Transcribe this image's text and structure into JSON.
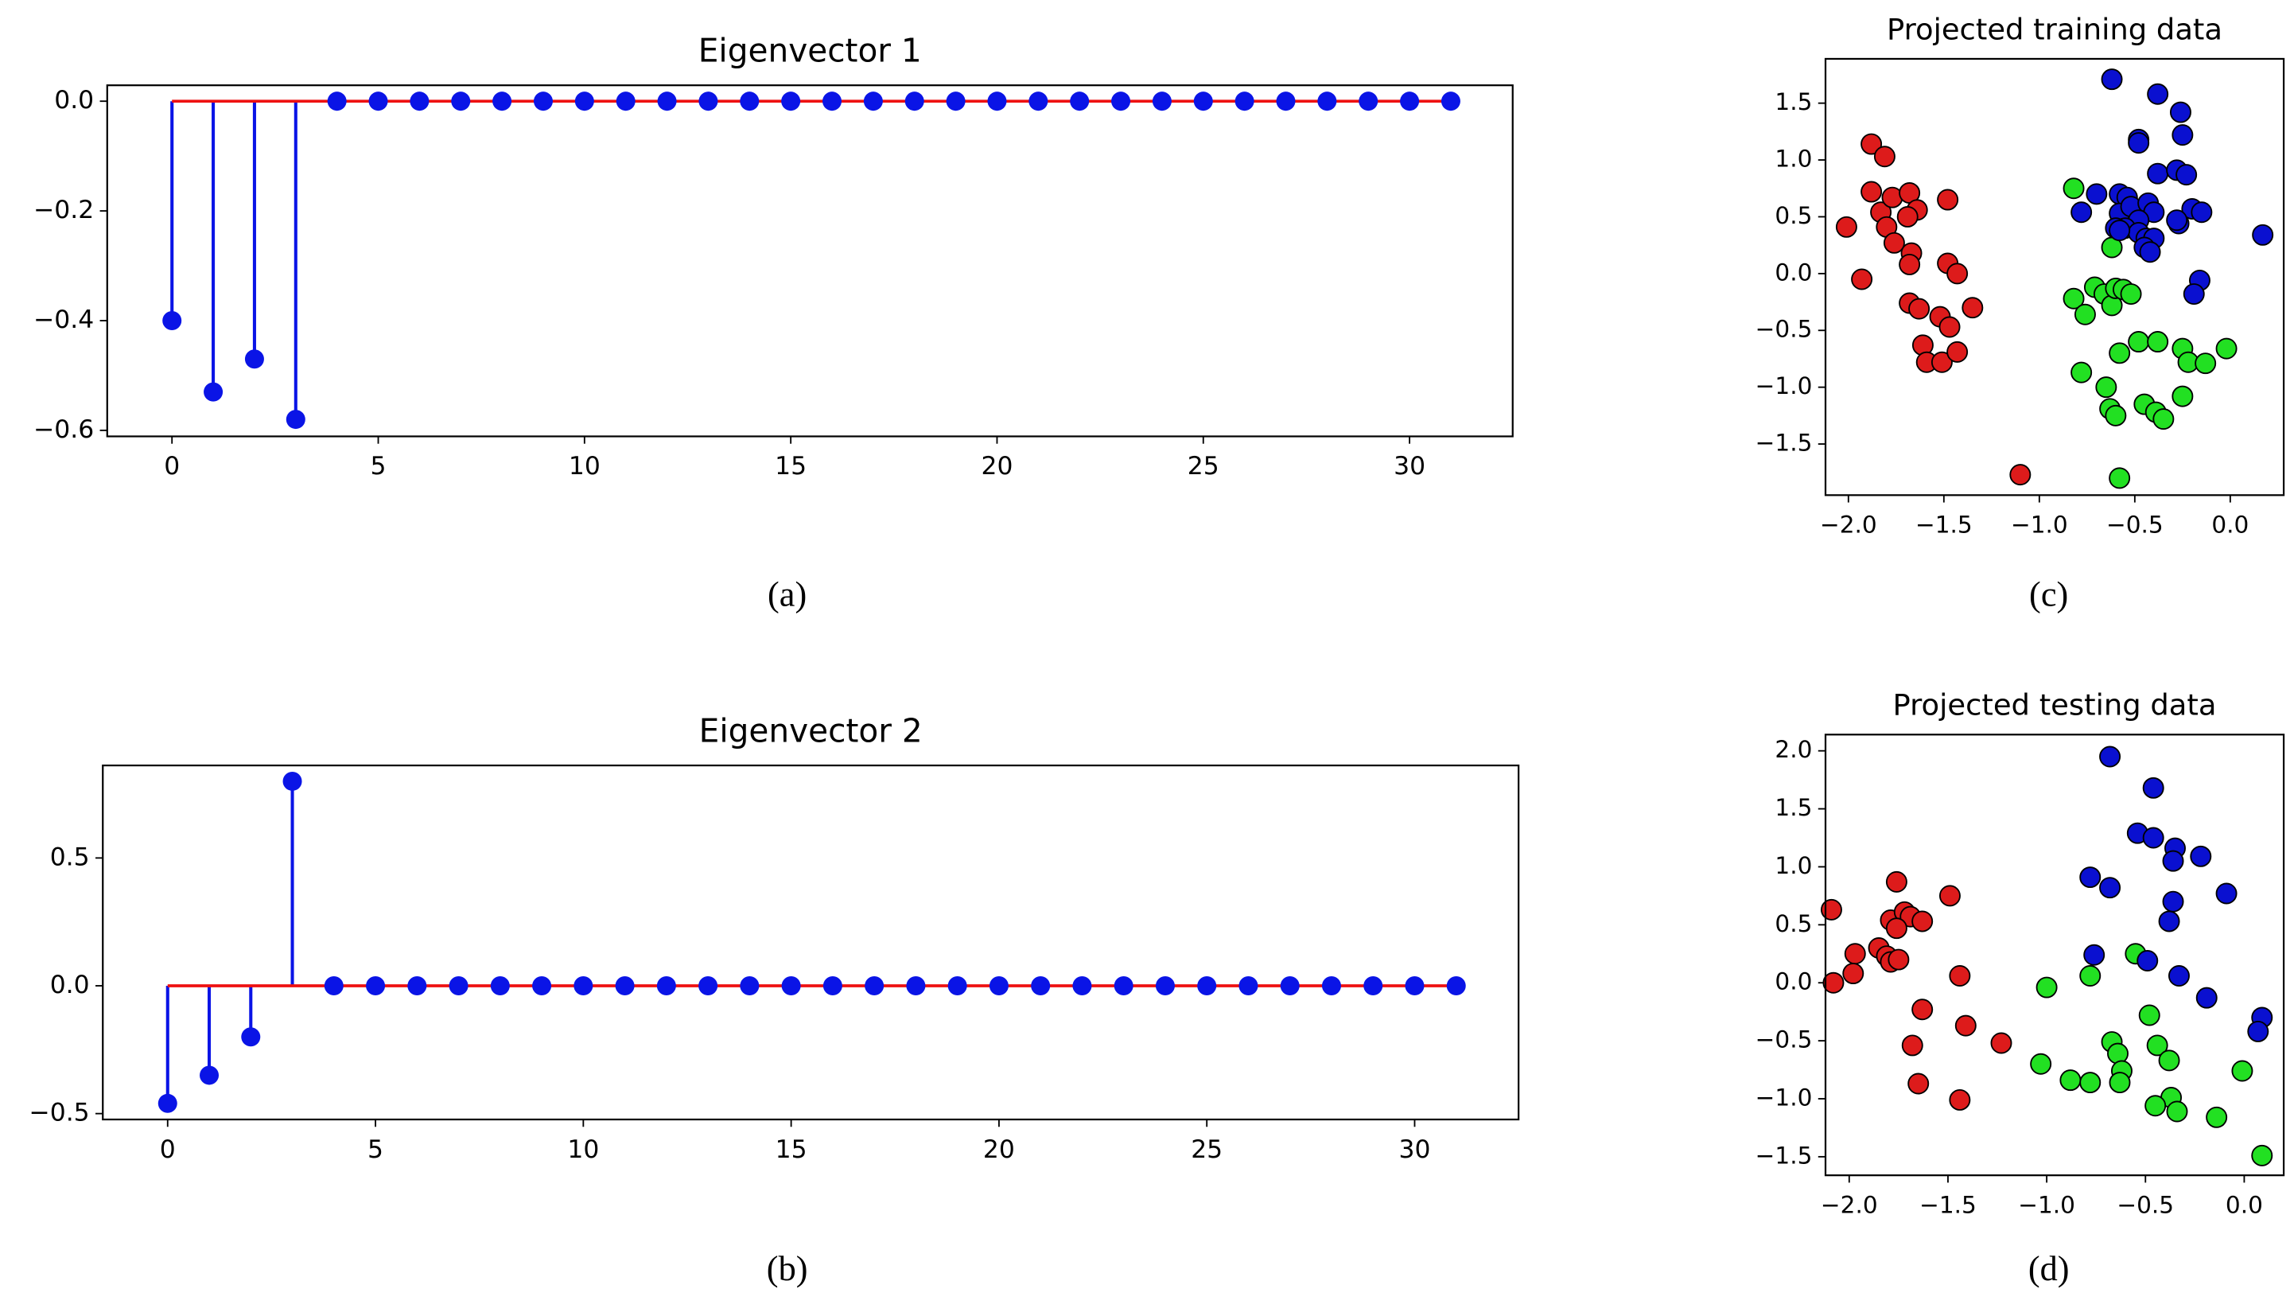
{
  "chart_data": [
    {
      "type": "stem",
      "title": "Eigenvector 1",
      "caption": "(a)",
      "color": "#0a14e6",
      "baseline_color": "#ee1111",
      "x": [
        0,
        1,
        2,
        3,
        4,
        5,
        6,
        7,
        8,
        9,
        10,
        11,
        12,
        13,
        14,
        15,
        16,
        17,
        18,
        19,
        20,
        21,
        22,
        23,
        24,
        25,
        26,
        27,
        28,
        29,
        30,
        31
      ],
      "values": [
        -0.4,
        -0.53,
        -0.47,
        -0.58,
        0,
        0,
        0,
        0,
        0,
        0,
        0,
        0,
        0,
        0,
        0,
        0,
        0,
        0,
        0,
        0,
        0,
        0,
        0,
        0,
        0,
        0,
        0,
        0,
        0,
        0,
        0,
        0
      ],
      "xlim": [
        -1.57,
        32.5
      ],
      "ylim": [
        -0.611,
        0.029
      ],
      "xticks": [
        0,
        5,
        10,
        15,
        20,
        25,
        30
      ],
      "yticks": [
        {
          "value": 0,
          "label": "0.0"
        },
        {
          "value": -0.2,
          "label": "−0.2"
        },
        {
          "value": -0.4,
          "label": "−0.4"
        },
        {
          "value": -0.6,
          "label": "−0.6"
        }
      ]
    },
    {
      "type": "stem",
      "title": "Eigenvector 2",
      "caption": "(b)",
      "color": "#0a14e6",
      "baseline_color": "#ee1111",
      "x": [
        0,
        1,
        2,
        3,
        4,
        5,
        6,
        7,
        8,
        9,
        10,
        11,
        12,
        13,
        14,
        15,
        16,
        17,
        18,
        19,
        20,
        21,
        22,
        23,
        24,
        25,
        26,
        27,
        28,
        29,
        30,
        31
      ],
      "values": [
        -0.46,
        -0.35,
        -0.2,
        0.8,
        0,
        0,
        0,
        0,
        0,
        0,
        0,
        0,
        0,
        0,
        0,
        0,
        0,
        0,
        0,
        0,
        0,
        0,
        0,
        0,
        0,
        0,
        0,
        0,
        0,
        0,
        0,
        0
      ],
      "xlim": [
        -1.56,
        32.5
      ],
      "ylim": [
        -0.523,
        0.862
      ],
      "xticks": [
        0,
        5,
        10,
        15,
        20,
        25,
        30
      ],
      "yticks": [
        {
          "value": 0.5,
          "label": "0.5"
        },
        {
          "value": 0,
          "label": "0.0"
        },
        {
          "value": -0.5,
          "label": "−0.5"
        }
      ]
    },
    {
      "type": "scatter",
      "title": "Projected training data",
      "caption": "(c)",
      "xlim": [
        -2.12,
        0.28
      ],
      "ylim": [
        -1.95,
        1.89
      ],
      "xticks": [
        {
          "value": -2,
          "label": "−2.0"
        },
        {
          "value": -1.5,
          "label": "−1.5"
        },
        {
          "value": -1,
          "label": "−1.0"
        },
        {
          "value": -0.5,
          "label": "−0.5"
        },
        {
          "value": 0,
          "label": "0.0"
        }
      ],
      "yticks": [
        {
          "value": -1.5,
          "label": "−1.5"
        },
        {
          "value": -1,
          "label": "−1.0"
        },
        {
          "value": -0.5,
          "label": "−0.5"
        },
        {
          "value": 0,
          "label": "0.0"
        },
        {
          "value": 0.5,
          "label": "0.5"
        },
        {
          "value": 1,
          "label": "1.0"
        },
        {
          "value": 1.5,
          "label": "1.5"
        }
      ],
      "series": [
        {
          "color": "#dd1b1b",
          "x": [
            -2.01,
            -1.88,
            -1.81,
            -1.88,
            -1.83,
            -1.8,
            -1.76,
            -1.77,
            -1.68,
            -1.64,
            -1.69,
            -1.67,
            -1.68,
            -1.93,
            -1.48,
            -1.48,
            -1.43,
            -1.68,
            -1.63,
            -1.52,
            -1.47,
            -1.35,
            -1.61,
            -1.59,
            -1.51,
            -1.43,
            -1.1
          ],
          "values": [
            0.41,
            1.14,
            1.03,
            0.72,
            0.54,
            0.41,
            0.27,
            0.67,
            0.71,
            0.56,
            0.5,
            0.18,
            0.08,
            -0.05,
            0.65,
            0.09,
            0,
            -0.26,
            -0.31,
            -0.38,
            -0.47,
            -0.3,
            -0.63,
            -0.78,
            -0.78,
            -0.69,
            -1.77
          ]
        },
        {
          "color": "#22e022",
          "x": [
            -0.82,
            -0.82,
            -0.76,
            -0.71,
            -0.66,
            -0.62,
            -0.6,
            -0.56,
            -0.52,
            -0.62,
            -0.48,
            -0.38,
            -0.58,
            -0.78,
            -0.65,
            -0.63,
            -0.6,
            -0.45,
            -0.39,
            -0.35,
            -0.25,
            -0.25,
            -0.22,
            -0.13,
            -0.02,
            -0.58
          ],
          "values": [
            0.75,
            -0.22,
            -0.36,
            -0.12,
            -0.18,
            -0.28,
            -0.13,
            -0.14,
            -0.18,
            0.23,
            -0.6,
            -0.6,
            -0.7,
            -0.87,
            -1,
            -1.19,
            -1.25,
            -1.15,
            -1.22,
            -1.28,
            -1.08,
            -0.66,
            -0.78,
            -0.79,
            -0.66,
            -1.8
          ]
        },
        {
          "color": "#0a10d0",
          "x": [
            -0.62,
            -0.38,
            -0.26,
            -0.48,
            -0.48,
            -0.25,
            -0.38,
            -0.28,
            -0.23,
            -0.7,
            -0.78,
            -0.58,
            -0.54,
            -0.58,
            -0.52,
            -0.43,
            -0.4,
            -0.48,
            -0.55,
            -0.6,
            -0.48,
            -0.44,
            -0.4,
            -0.45,
            -0.42,
            -0.27,
            -0.2,
            -0.15,
            -0.28,
            -0.16,
            -0.19,
            0.17,
            -0.58
          ],
          "values": [
            1.71,
            1.58,
            1.42,
            1.18,
            1.15,
            1.22,
            0.88,
            0.91,
            0.87,
            0.7,
            0.54,
            0.7,
            0.67,
            0.53,
            0.59,
            0.62,
            0.54,
            0.47,
            0.4,
            0.4,
            0.36,
            0.31,
            0.31,
            0.23,
            0.19,
            0.44,
            0.57,
            0.54,
            0.47,
            -0.06,
            -0.18,
            0.34,
            0.38
          ]
        }
      ]
    },
    {
      "type": "scatter",
      "title": "Projected testing data",
      "caption": "(d)",
      "xlim": [
        -2.12,
        0.2
      ],
      "ylim": [
        -1.66,
        2.14
      ],
      "xticks": [
        {
          "value": -2,
          "label": "−2.0"
        },
        {
          "value": -1.5,
          "label": "−1.5"
        },
        {
          "value": -1,
          "label": "−1.0"
        },
        {
          "value": -0.5,
          "label": "−0.5"
        },
        {
          "value": 0,
          "label": "0.0"
        }
      ],
      "yticks": [
        {
          "value": -1.5,
          "label": "−1.5"
        },
        {
          "value": -1,
          "label": "−1.0"
        },
        {
          "value": -0.5,
          "label": "−0.5"
        },
        {
          "value": 0,
          "label": "0.0"
        },
        {
          "value": 0.5,
          "label": "0.5"
        },
        {
          "value": 1,
          "label": "1.0"
        },
        {
          "value": 1.5,
          "label": "1.5"
        },
        {
          "value": 2,
          "label": "2.0"
        }
      ],
      "series": [
        {
          "color": "#dd1b1b",
          "x": [
            -2.09,
            -1.97,
            -1.98,
            -2.08,
            -1.76,
            -1.79,
            -1.72,
            -1.69,
            -1.63,
            -1.76,
            -1.85,
            -1.81,
            -1.79,
            -1.75,
            -1.49,
            -1.44,
            -1.63,
            -1.68,
            -1.41,
            -1.65,
            -1.23,
            -1.44
          ],
          "values": [
            0.63,
            0.25,
            0.08,
            0,
            0.87,
            0.54,
            0.61,
            0.57,
            0.53,
            0.47,
            0.3,
            0.23,
            0.18,
            0.2,
            0.75,
            0.06,
            -0.23,
            -0.54,
            -0.37,
            -0.87,
            -0.52,
            -1.01
          ]
        },
        {
          "color": "#22e022",
          "x": [
            -1,
            -0.78,
            -0.55,
            -0.48,
            -0.67,
            -0.64,
            -0.62,
            -0.63,
            -1.03,
            -0.88,
            -0.78,
            -0.44,
            -0.38,
            -0.37,
            -0.34,
            -0.45,
            -0.14,
            -0.01,
            0.09
          ],
          "values": [
            -0.04,
            0.06,
            0.25,
            -0.28,
            -0.51,
            -0.61,
            -0.76,
            -0.86,
            -0.7,
            -0.84,
            -0.86,
            -0.54,
            -0.67,
            -0.99,
            -1.11,
            -1.06,
            -1.16,
            -0.76,
            -1.49
          ]
        },
        {
          "color": "#0a10d0",
          "x": [
            -0.68,
            -0.46,
            -0.54,
            -0.46,
            -0.35,
            -0.36,
            -0.22,
            -0.78,
            -0.68,
            -0.09,
            -0.36,
            -0.38,
            -0.76,
            -0.49,
            -0.33,
            -0.19,
            0.09,
            0.07
          ],
          "values": [
            1.95,
            1.68,
            1.29,
            1.25,
            1.16,
            1.05,
            1.09,
            0.91,
            0.82,
            0.77,
            0.7,
            0.53,
            0.24,
            0.19,
            0.06,
            -0.13,
            -0.3,
            -0.42
          ]
        }
      ]
    }
  ]
}
